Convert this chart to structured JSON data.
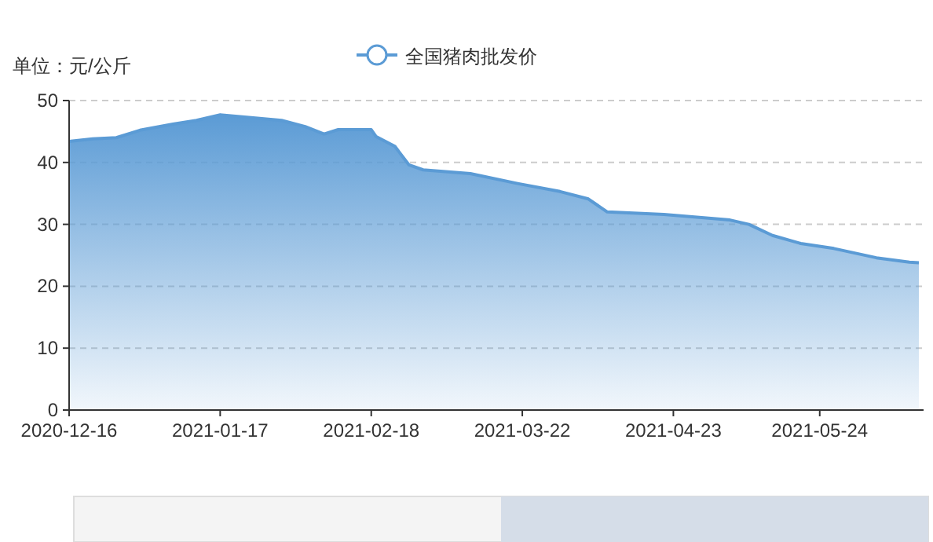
{
  "chart_data": {
    "type": "area",
    "ylabel": "单位：元/公斤",
    "legend": "top",
    "x": [
      "2020-12-16",
      "2020-12-21",
      "2020-12-26",
      "2020-12-31",
      "2021-01-07",
      "2021-01-12",
      "2021-01-17",
      "2021-01-24",
      "2021-01-30",
      "2021-02-04",
      "2021-02-08",
      "2021-02-11",
      "2021-02-18",
      "2021-02-19",
      "2021-02-23",
      "2021-02-26",
      "2021-03-01",
      "2021-03-11",
      "2021-03-21",
      "2021-03-30",
      "2021-04-05",
      "2021-04-09",
      "2021-04-21",
      "2021-05-05",
      "2021-05-09",
      "2021-05-14",
      "2021-05-20",
      "2021-05-27",
      "2021-06-05",
      "2021-06-12",
      "2021-06-14"
    ],
    "series": [
      {
        "name": "全国猪肉批发价",
        "color": "#5b9bd5",
        "values": [
          43.4,
          43.8,
          44.0,
          45.2,
          46.2,
          46.8,
          47.7,
          47.2,
          46.8,
          45.8,
          44.6,
          45.3,
          45.3,
          44.2,
          42.6,
          39.6,
          38.8,
          38.2,
          36.6,
          35.3,
          34.1,
          32.0,
          31.6,
          30.7,
          30.0,
          28.2,
          26.9,
          26.1,
          24.6,
          23.9,
          23.8
        ]
      }
    ],
    "xlim": [
      "2020-12-16",
      "2021-06-15"
    ],
    "xticks": [
      "2020-12-16",
      "2021-01-17",
      "2021-02-18",
      "2021-03-22",
      "2021-04-23",
      "2021-05-24"
    ],
    "ylim": [
      0,
      50
    ],
    "yticks": [
      0,
      10,
      20,
      30,
      40,
      50
    ],
    "grid": "y"
  }
}
